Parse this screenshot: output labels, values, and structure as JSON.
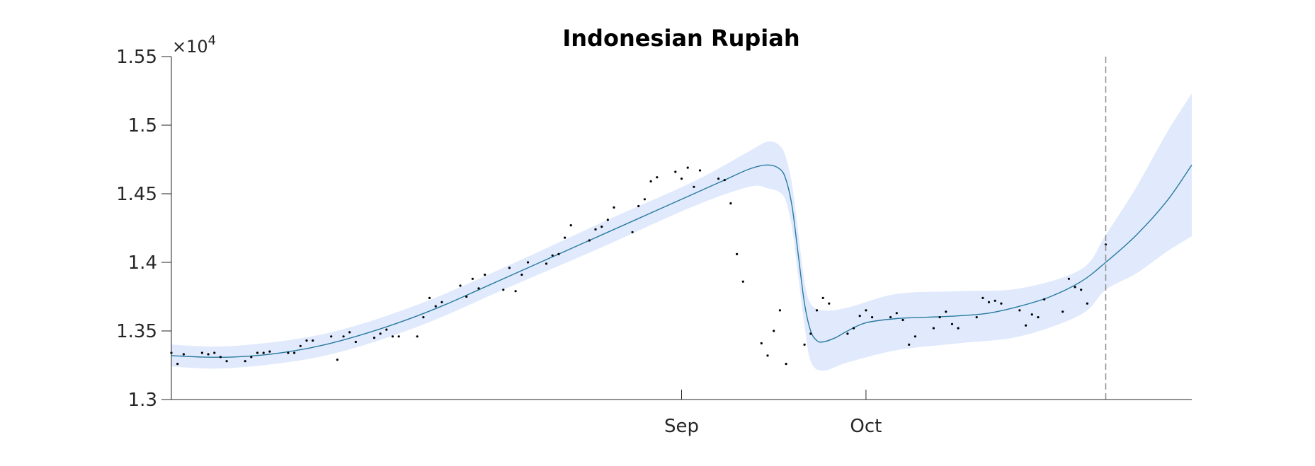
{
  "chart_data": {
    "type": "line",
    "title": "Indonesian Rupiah",
    "xlabel": "",
    "ylabel": "",
    "y_multiplier": {
      "base": "×10",
      "exponent": "4"
    },
    "ylim": [
      13000,
      15500
    ],
    "y_ticks": [
      {
        "value": 13000,
        "label": "1.3"
      },
      {
        "value": 13500,
        "label": "1.35"
      },
      {
        "value": 14000,
        "label": "1.4"
      },
      {
        "value": 14500,
        "label": "1.45"
      },
      {
        "value": 15000,
        "label": "1.5"
      },
      {
        "value": 15500,
        "label": "1.55"
      }
    ],
    "x_range": [
      "2015-06-10",
      "2015-11-23"
    ],
    "x_ticks": [
      {
        "date": "2015-09-01",
        "label": "Sep"
      },
      {
        "date": "2015-10-01",
        "label": "Oct"
      }
    ],
    "forecast_start": "2015-11-09",
    "colors": {
      "band": "#e0eafc",
      "mean": "#2a7a9f",
      "points": "#000000",
      "vline": "#8c8c8c",
      "axis": "#262626"
    },
    "mean_curve": {
      "x": [
        "2015-06-10",
        "2015-06-15",
        "2015-06-20",
        "2015-06-25",
        "2015-06-30",
        "2015-07-05",
        "2015-07-10",
        "2015-07-15",
        "2015-07-20",
        "2015-07-25",
        "2015-07-30",
        "2015-08-04",
        "2015-08-09",
        "2015-08-14",
        "2015-08-19",
        "2015-08-24",
        "2015-08-29",
        "2015-09-03",
        "2015-09-08",
        "2015-09-12",
        "2015-09-15",
        "2015-09-17",
        "2015-09-18",
        "2015-09-19",
        "2015-09-20",
        "2015-09-21",
        "2015-09-22",
        "2015-09-23",
        "2015-09-24",
        "2015-09-26",
        "2015-09-28",
        "2015-10-01",
        "2015-10-06",
        "2015-10-11",
        "2015-10-16",
        "2015-10-21",
        "2015-10-26",
        "2015-10-31",
        "2015-11-05",
        "2015-11-09",
        "2015-11-14",
        "2015-11-19",
        "2015-11-23"
      ],
      "y": [
        13320,
        13310,
        13310,
        13325,
        13355,
        13400,
        13460,
        13530,
        13610,
        13700,
        13800,
        13900,
        14000,
        14100,
        14200,
        14300,
        14400,
        14500,
        14600,
        14680,
        14710,
        14680,
        14600,
        14400,
        14050,
        13700,
        13500,
        13430,
        13420,
        13450,
        13500,
        13560,
        13590,
        13600,
        13610,
        13630,
        13680,
        13750,
        13860,
        14000,
        14200,
        14450,
        14710
      ]
    },
    "band_upper": {
      "x": [
        "2015-06-10",
        "2015-06-20",
        "2015-07-05",
        "2015-07-20",
        "2015-08-04",
        "2015-08-19",
        "2015-09-03",
        "2015-09-12",
        "2015-09-15",
        "2015-09-17",
        "2015-09-18",
        "2015-09-19",
        "2015-09-20",
        "2015-09-21",
        "2015-09-22",
        "2015-09-24",
        "2015-09-28",
        "2015-10-06",
        "2015-10-16",
        "2015-10-26",
        "2015-11-05",
        "2015-11-09",
        "2015-11-14",
        "2015-11-19",
        "2015-11-23"
      ],
      "y": [
        13400,
        13390,
        13480,
        13690,
        13980,
        14290,
        14590,
        14810,
        14880,
        14850,
        14760,
        14560,
        14210,
        13860,
        13700,
        13650,
        13670,
        13770,
        13790,
        13810,
        13950,
        14200,
        14550,
        14950,
        15230
      ]
    },
    "band_lower": {
      "x": [
        "2015-06-10",
        "2015-06-20",
        "2015-07-05",
        "2015-07-20",
        "2015-08-04",
        "2015-08-19",
        "2015-09-03",
        "2015-09-12",
        "2015-09-15",
        "2015-09-17",
        "2015-09-18",
        "2015-09-19",
        "2015-09-20",
        "2015-09-21",
        "2015-09-22",
        "2015-09-24",
        "2015-09-28",
        "2015-10-06",
        "2015-10-16",
        "2015-10-26",
        "2015-11-05",
        "2015-11-09",
        "2015-11-14",
        "2015-11-19",
        "2015-11-23"
      ],
      "y": [
        13240,
        13230,
        13320,
        13530,
        13820,
        14110,
        14410,
        14550,
        14540,
        14510,
        14440,
        14240,
        13890,
        13540,
        13280,
        13210,
        13270,
        13360,
        13410,
        13460,
        13620,
        13800,
        13920,
        14080,
        14190
      ]
    },
    "observations": {
      "x": [
        "2015-06-10",
        "2015-06-11",
        "2015-06-12",
        "2015-06-15",
        "2015-06-16",
        "2015-06-17",
        "2015-06-18",
        "2015-06-19",
        "2015-06-22",
        "2015-06-23",
        "2015-06-24",
        "2015-06-25",
        "2015-06-26",
        "2015-06-29",
        "2015-06-30",
        "2015-07-01",
        "2015-07-02",
        "2015-07-03",
        "2015-07-06",
        "2015-07-07",
        "2015-07-08",
        "2015-07-09",
        "2015-07-10",
        "2015-07-13",
        "2015-07-14",
        "2015-07-15",
        "2015-07-16",
        "2015-07-17",
        "2015-07-20",
        "2015-07-21",
        "2015-07-22",
        "2015-07-23",
        "2015-07-24",
        "2015-07-27",
        "2015-07-28",
        "2015-07-29",
        "2015-07-30",
        "2015-07-31",
        "2015-08-03",
        "2015-08-04",
        "2015-08-05",
        "2015-08-06",
        "2015-08-07",
        "2015-08-10",
        "2015-08-11",
        "2015-08-12",
        "2015-08-13",
        "2015-08-14",
        "2015-08-17",
        "2015-08-18",
        "2015-08-19",
        "2015-08-20",
        "2015-08-21",
        "2015-08-24",
        "2015-08-25",
        "2015-08-26",
        "2015-08-27",
        "2015-08-28",
        "2015-08-31",
        "2015-09-01",
        "2015-09-02",
        "2015-09-03",
        "2015-09-04",
        "2015-09-07",
        "2015-09-08",
        "2015-09-09",
        "2015-09-10",
        "2015-09-11",
        "2015-09-14",
        "2015-09-15",
        "2015-09-16",
        "2015-09-17",
        "2015-09-18",
        "2015-09-21",
        "2015-09-22",
        "2015-09-23",
        "2015-09-24",
        "2015-09-25",
        "2015-09-28",
        "2015-09-29",
        "2015-09-30",
        "2015-10-01",
        "2015-10-02",
        "2015-10-05",
        "2015-10-06",
        "2015-10-07",
        "2015-10-08",
        "2015-10-09",
        "2015-10-12",
        "2015-10-13",
        "2015-10-14",
        "2015-10-15",
        "2015-10-16",
        "2015-10-19",
        "2015-10-20",
        "2015-10-21",
        "2015-10-22",
        "2015-10-23",
        "2015-10-26",
        "2015-10-27",
        "2015-10-28",
        "2015-10-29",
        "2015-10-30",
        "2015-11-02",
        "2015-11-03",
        "2015-11-04",
        "2015-11-05",
        "2015-11-06",
        "2015-11-09"
      ],
      "y": [
        13340,
        13260,
        13330,
        13340,
        13330,
        13340,
        13310,
        13280,
        13280,
        13310,
        13340,
        13340,
        13350,
        13340,
        13340,
        13390,
        13430,
        13430,
        13460,
        13290,
        13460,
        13490,
        13420,
        13450,
        13480,
        13510,
        13460,
        13460,
        13460,
        13600,
        13740,
        13680,
        13710,
        13830,
        13750,
        13880,
        13810,
        13910,
        13800,
        13960,
        13790,
        13910,
        14000,
        13990,
        14050,
        14060,
        14180,
        14270,
        14160,
        14240,
        14260,
        14310,
        14400,
        14220,
        14410,
        14460,
        14590,
        14620,
        14660,
        14610,
        14690,
        14550,
        14670,
        14610,
        14600,
        14430,
        14060,
        13860,
        13410,
        13320,
        13500,
        13650,
        13260,
        13400,
        13480,
        13650,
        13740,
        13700,
        13480,
        13520,
        13610,
        13650,
        13600,
        13600,
        13630,
        13580,
        13400,
        13460,
        13520,
        13600,
        13640,
        13550,
        13520,
        13600,
        13740,
        13710,
        13720,
        13700,
        13650,
        13540,
        13620,
        13600,
        13730,
        13640,
        13880,
        13820,
        13800,
        13700,
        14130
      ]
    }
  }
}
